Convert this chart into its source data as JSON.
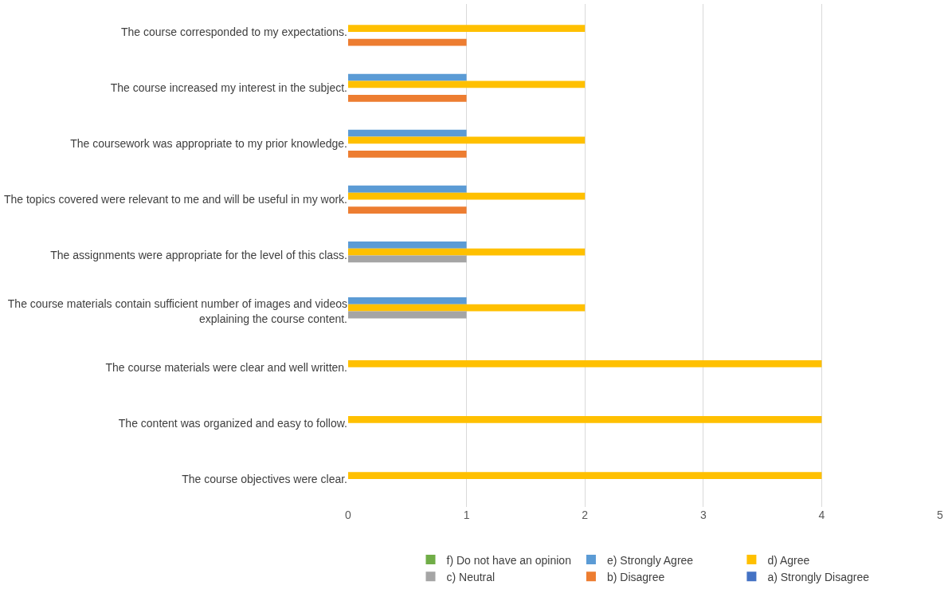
{
  "chart_data": {
    "type": "bar",
    "orientation": "horizontal",
    "categories": [
      "The course corresponded to my expectations.",
      "The course increased my interest in the subject.",
      "The coursework was appropriate to my prior knowledge.",
      "The topics covered were relevant to me and will be useful in my work.",
      "The assignments were appropriate for the level of this class.",
      "The course materials contain sufficient number of images and videos\nexplaining the course content.",
      "The course materials were clear and well written.",
      "The content was organized and easy to follow.",
      "The course objectives were clear."
    ],
    "series": [
      {
        "name": "f) Do not have an opinion",
        "color": "#70ad47",
        "values": [
          0,
          0,
          0,
          0,
          0,
          0,
          0,
          0,
          0
        ]
      },
      {
        "name": "e) Strongly Agree",
        "color": "#5b9bd5",
        "values": [
          0,
          1,
          1,
          1,
          1,
          1,
          0,
          0,
          0
        ]
      },
      {
        "name": "d) Agree",
        "color": "#ffc000",
        "values": [
          2,
          2,
          2,
          2,
          2,
          2,
          4,
          4,
          4
        ]
      },
      {
        "name": "c) Neutral",
        "color": "#a5a5a5",
        "values": [
          0,
          0,
          0,
          0,
          1,
          1,
          0,
          0,
          0
        ]
      },
      {
        "name": "b) Disagree",
        "color": "#ed7d31",
        "values": [
          1,
          1,
          1,
          1,
          0,
          0,
          0,
          0,
          0
        ]
      },
      {
        "name": "a) Strongly Disagree",
        "color": "#4472c4",
        "values": [
          0,
          0,
          0,
          0,
          0,
          0,
          0,
          0,
          0
        ]
      }
    ],
    "xlim": [
      0,
      5
    ],
    "xticks": [
      0,
      1,
      2,
      3,
      4,
      5
    ],
    "grid": "x",
    "legend": "bottom"
  }
}
